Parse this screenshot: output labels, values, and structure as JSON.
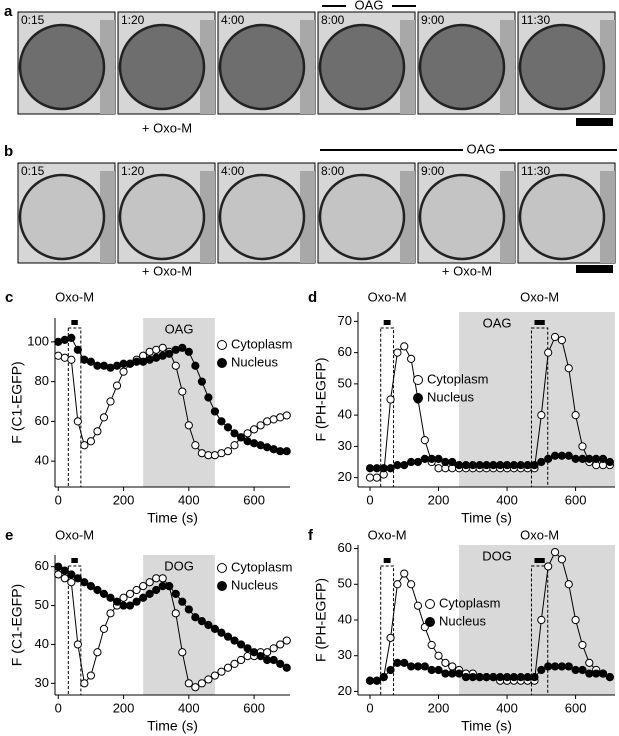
{
  "panel_a": {
    "label": "a",
    "frames": [
      "0:15",
      "1:20",
      "4:00",
      "8:00",
      "9:00",
      "11:30"
    ],
    "bar_label": "OAG",
    "below_labels": [
      "+ Oxo-M"
    ]
  },
  "panel_b": {
    "label": "b",
    "frames": [
      "0:15",
      "1:20",
      "4:00",
      "8:00",
      "9:00",
      "11:30"
    ],
    "bar_label": "OAG",
    "below_labels": [
      "+ Oxo-M",
      "+ Oxo-M"
    ]
  },
  "chart_data": [
    {
      "type": "line",
      "label": "c",
      "ylabel": "F (C1-EGFP)",
      "xlabel": "Time (s)",
      "stimuli": [
        {
          "label": "Oxo-M",
          "x": [
            40,
            60
          ]
        }
      ],
      "shade": {
        "label": "OAG",
        "x": [
          260,
          480
        ]
      },
      "x": [
        0,
        20,
        40,
        60,
        80,
        100,
        120,
        140,
        160,
        180,
        200,
        220,
        240,
        260,
        280,
        300,
        320,
        340,
        360,
        380,
        400,
        420,
        440,
        460,
        480,
        500,
        520,
        540,
        560,
        580,
        600,
        620,
        640,
        660,
        680,
        700
      ],
      "series": [
        {
          "name": "Cytoplasm",
          "color": "#000000",
          "marker_fill": "#ffffff",
          "values": [
            93,
            92,
            91,
            60,
            48,
            50,
            55,
            62,
            70,
            78,
            85,
            89,
            91,
            93,
            95,
            96,
            97,
            95,
            88,
            75,
            58,
            48,
            44,
            43,
            43,
            44,
            45,
            48,
            52,
            54,
            56,
            58,
            60,
            61,
            62,
            63
          ]
        },
        {
          "name": "Nucleus",
          "color": "#000000",
          "marker_fill": "#000000",
          "values": [
            100,
            101,
            102,
            96,
            91,
            90,
            88,
            88,
            87,
            88,
            89,
            89,
            90,
            90,
            91,
            92,
            93,
            94,
            96,
            97,
            95,
            88,
            80,
            72,
            65,
            60,
            57,
            54,
            52,
            50,
            49,
            48,
            47,
            46,
            45,
            45
          ]
        }
      ],
      "xlim": [
        -10,
        710
      ],
      "xticks": [
        0,
        200,
        400,
        600
      ],
      "ylim": [
        27,
        112
      ],
      "yticks": [
        40,
        60,
        80,
        100
      ],
      "legend": "upper right"
    },
    {
      "type": "line",
      "label": "d",
      "ylabel": "F (PH-EGFP)",
      "xlabel": "Time (s)",
      "stimuli": [
        {
          "label": "Oxo-M",
          "x": [
            40,
            60
          ]
        },
        {
          "label": "Oxo-M",
          "x": [
            480,
            510
          ]
        }
      ],
      "shade": {
        "label": "OAG",
        "x": [
          260,
          715
        ]
      },
      "x": [
        0,
        20,
        40,
        60,
        80,
        100,
        120,
        140,
        160,
        180,
        200,
        220,
        240,
        260,
        280,
        300,
        320,
        340,
        360,
        380,
        400,
        420,
        440,
        460,
        480,
        500,
        520,
        540,
        560,
        580,
        600,
        620,
        640,
        660,
        680,
        700
      ],
      "series": [
        {
          "name": "Cytoplasm",
          "color": "#000000",
          "marker_fill": "#ffffff",
          "values": [
            20,
            20,
            21,
            45,
            60,
            62,
            58,
            45,
            32,
            25,
            23,
            23,
            23,
            23,
            23,
            23,
            23,
            23,
            23,
            23,
            23,
            23,
            23,
            23,
            23,
            40,
            60,
            65,
            64,
            55,
            40,
            30,
            25,
            24,
            24,
            24
          ]
        },
        {
          "name": "Nucleus",
          "color": "#000000",
          "marker_fill": "#000000",
          "values": [
            23,
            23,
            23,
            23,
            24,
            24,
            25,
            25,
            26,
            26,
            26,
            25,
            25,
            24,
            24,
            24,
            24,
            24,
            24,
            24,
            24,
            24,
            24,
            24,
            24,
            25,
            26,
            27,
            27,
            27,
            26,
            26,
            26,
            26,
            26,
            25
          ]
        }
      ],
      "xlim": [
        -35,
        715
      ],
      "xticks": [
        0,
        200,
        400,
        600
      ],
      "ylim": [
        17,
        73
      ],
      "yticks": [
        20,
        30,
        40,
        50,
        60,
        70
      ],
      "legend": "center"
    },
    {
      "type": "line",
      "label": "e",
      "ylabel": "F (C1-EGFP)",
      "xlabel": "Time (s)",
      "stimuli": [
        {
          "label": "Oxo-M",
          "x": [
            40,
            60
          ]
        }
      ],
      "shade": {
        "label": "DOG",
        "x": [
          260,
          480
        ]
      },
      "x": [
        0,
        20,
        40,
        60,
        80,
        100,
        120,
        140,
        160,
        180,
        200,
        220,
        240,
        260,
        280,
        300,
        320,
        340,
        360,
        380,
        400,
        420,
        440,
        460,
        480,
        500,
        520,
        540,
        560,
        580,
        600,
        620,
        640,
        660,
        680,
        700
      ],
      "series": [
        {
          "name": "Cytoplasm",
          "color": "#000000",
          "marker_fill": "#ffffff",
          "values": [
            58,
            57,
            56,
            40,
            30,
            32,
            38,
            44,
            48,
            50,
            52,
            53,
            54,
            55,
            56,
            57,
            57,
            55,
            48,
            38,
            30,
            29,
            30,
            31,
            32,
            33,
            34,
            35,
            36,
            37,
            37,
            38,
            38,
            39,
            40,
            41
          ]
        },
        {
          "name": "Nucleus",
          "color": "#000000",
          "marker_fill": "#000000",
          "values": [
            60,
            59,
            58,
            57,
            56,
            55,
            54,
            53,
            52,
            51,
            50,
            50,
            51,
            52,
            53,
            54,
            55,
            55,
            53,
            51,
            49,
            47,
            46,
            45,
            44,
            43,
            42,
            41,
            40,
            39,
            38,
            37,
            36,
            36,
            35,
            34
          ]
        }
      ],
      "xlim": [
        -10,
        710
      ],
      "xticks": [
        0,
        200,
        400,
        600
      ],
      "ylim": [
        27,
        63
      ],
      "yticks": [
        30,
        40,
        50,
        60
      ],
      "legend": "upper right"
    },
    {
      "type": "line",
      "label": "f",
      "ylabel": "F (PH-EGFP)",
      "xlabel": "Time (s)",
      "stimuli": [
        {
          "label": "Oxo-M",
          "x": [
            40,
            60
          ]
        },
        {
          "label": "Oxo-M",
          "x": [
            480,
            510
          ]
        }
      ],
      "shade": {
        "label": "DOG",
        "x": [
          260,
          715
        ]
      },
      "x": [
        0,
        20,
        40,
        60,
        80,
        100,
        120,
        140,
        160,
        180,
        200,
        220,
        240,
        260,
        280,
        300,
        320,
        340,
        360,
        380,
        400,
        420,
        440,
        460,
        480,
        500,
        520,
        540,
        560,
        580,
        600,
        620,
        640,
        660,
        680,
        700
      ],
      "series": [
        {
          "name": "Cytoplasm",
          "color": "#000000",
          "marker_fill": "#ffffff",
          "values": [
            23,
            23,
            24,
            35,
            50,
            53,
            50,
            44,
            38,
            33,
            30,
            28,
            27,
            26,
            25,
            25,
            24,
            24,
            24,
            23,
            23,
            23,
            23,
            23,
            23,
            40,
            55,
            59,
            57,
            50,
            40,
            33,
            28,
            26,
            25,
            24
          ]
        },
        {
          "name": "Nucleus",
          "color": "#000000",
          "marker_fill": "#000000",
          "values": [
            23,
            23,
            24,
            26,
            28,
            28,
            27,
            27,
            27,
            26,
            26,
            25,
            25,
            25,
            24,
            24,
            24,
            24,
            24,
            24,
            24,
            24,
            24,
            24,
            24,
            26,
            27,
            27,
            27,
            27,
            26,
            26,
            25,
            25,
            25,
            24
          ]
        }
      ],
      "xlim": [
        -35,
        715
      ],
      "xticks": [
        0,
        200,
        400,
        600
      ],
      "ylim": [
        19,
        61
      ],
      "yticks": [
        20,
        30,
        40,
        50,
        60
      ],
      "legend": "center"
    }
  ]
}
